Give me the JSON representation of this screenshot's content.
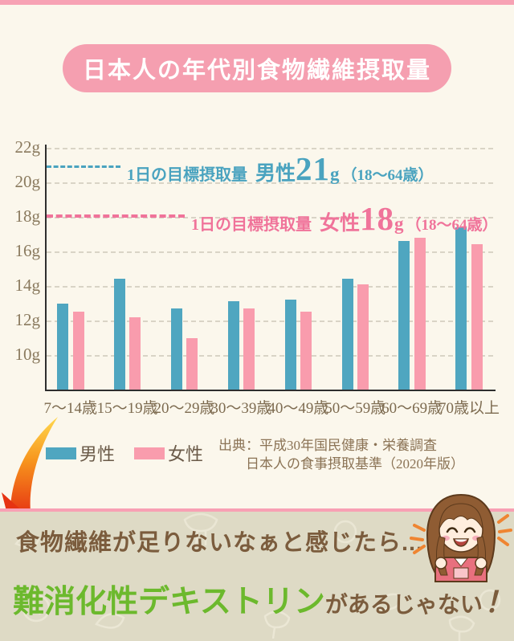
{
  "page": {
    "banner_title": "日本人の年代別食物繊維摂取量"
  },
  "chart_data": {
    "type": "bar",
    "title": "日本人の年代別食物繊維摂取量",
    "unit": "g",
    "ylim": [
      8,
      22
    ],
    "y_ticks": [
      22,
      20,
      18,
      16,
      14,
      12,
      10
    ],
    "grid": true,
    "categories": [
      "7〜14歳",
      "15〜19歳",
      "20〜29歳",
      "30〜39歳",
      "40〜49歳",
      "50〜59歳",
      "60〜69歳",
      "70歳以上"
    ],
    "series": [
      {
        "name": "男性",
        "color": "#4fa6c0",
        "values": [
          13.0,
          14.4,
          12.7,
          13.1,
          13.2,
          14.4,
          16.6,
          17.4
        ]
      },
      {
        "name": "女性",
        "color": "#f99cad",
        "values": [
          12.5,
          12.2,
          11.0,
          12.7,
          12.5,
          14.1,
          16.8,
          16.4
        ]
      }
    ],
    "target_lines": [
      {
        "prefix": "1日の目標摂取量",
        "who": "男性",
        "value": "21",
        "unit": "g",
        "range": "（18〜64歳）",
        "color": "#4aa3bf"
      },
      {
        "prefix": "1日の目標摂取量",
        "who": "女性",
        "value": "18",
        "unit": "g",
        "range": "（18〜64歳）",
        "color": "#f0739a"
      }
    ],
    "legend": [
      {
        "label": "男性",
        "color": "#4fa6c0"
      },
      {
        "label": "女性",
        "color": "#f99cad"
      }
    ],
    "legend_position": "bottom-left",
    "source_line1": "出典：平成30年国民健康・栄養調査",
    "source_line2": "日本人の食事摂取基準（2020年版）"
  },
  "bottom": {
    "catch_line": "食物繊維が足りないなぁと感じたら...",
    "product_green": "難消化性デキストリン",
    "suffix_brown": "があるじゃない",
    "exclamation": "！"
  },
  "colors": {
    "background": "#fbf7ec",
    "banner_pink": "#f59fb0",
    "bar_male": "#4fa6c0",
    "bar_female": "#f99cad",
    "target_male": "#4aa3bf",
    "target_female": "#f0739a",
    "bottom_band": "#dedac5",
    "divider_pink": "#f8a0b4",
    "text_brown": "#7b5c3d",
    "text_green": "#6cb92d",
    "arrow_red": "#e63312"
  }
}
